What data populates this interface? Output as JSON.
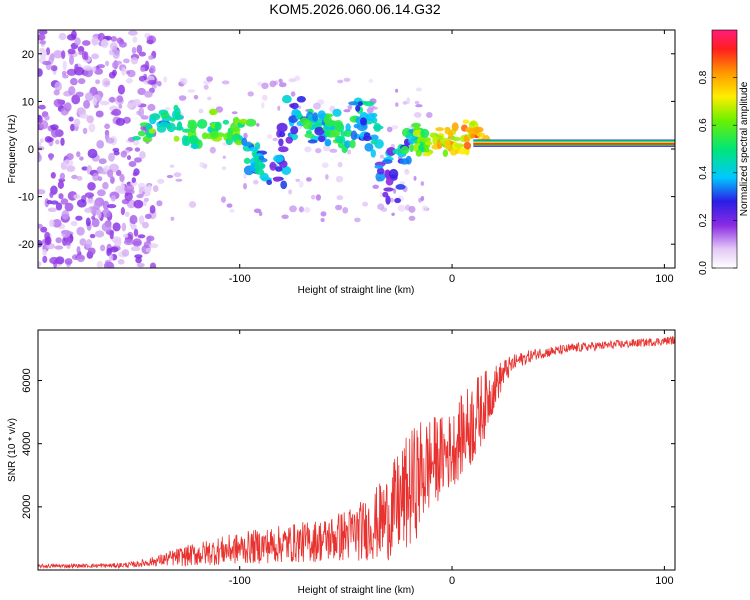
{
  "title": "KOM5.2026.060.06.14.G32",
  "chart_data": [
    {
      "type": "heatmap",
      "xlabel": "Height of straight line (km)",
      "ylabel": "Frequency (Hz)",
      "xlim": [
        -195,
        105
      ],
      "ylim": [
        -25,
        25
      ],
      "xticks": [
        -100,
        0,
        100
      ],
      "yticks": [
        -20,
        -10,
        0,
        10,
        20
      ],
      "colorbar": {
        "label": "Normalized spectral amplitude",
        "range": [
          0,
          1
        ],
        "ticks": [
          0.0,
          0.2,
          0.4,
          0.6,
          0.8
        ],
        "tick_labels": [
          "0.0",
          "0.2",
          "0.4",
          "0.6",
          "0.8"
        ]
      },
      "blobs": [
        {
          "x": -145,
          "f": 4,
          "a": 0.55
        },
        {
          "x": -138,
          "f": 5,
          "a": 0.45
        },
        {
          "x": -132,
          "f": 6,
          "a": 0.5
        },
        {
          "x": -128,
          "f": 4,
          "a": 0.55
        },
        {
          "x": -120,
          "f": 3,
          "a": 0.5
        },
        {
          "x": -115,
          "f": 5,
          "a": 0.5
        },
        {
          "x": -110,
          "f": 5,
          "a": 0.6
        },
        {
          "x": -104,
          "f": 4,
          "a": 0.55
        },
        {
          "x": -98,
          "f": 3,
          "a": 0.55
        },
        {
          "x": -95,
          "f": 0,
          "a": 0.4
        },
        {
          "x": -92,
          "f": -2,
          "a": 0.35
        },
        {
          "x": -88,
          "f": -4,
          "a": 0.35
        },
        {
          "x": -82,
          "f": -5,
          "a": 0.3
        },
        {
          "x": -78,
          "f": 2,
          "a": 0.3
        },
        {
          "x": -74,
          "f": 8,
          "a": 0.3
        },
        {
          "x": -70,
          "f": 6,
          "a": 0.4
        },
        {
          "x": -66,
          "f": 5,
          "a": 0.45
        },
        {
          "x": -62,
          "f": 4,
          "a": 0.35
        },
        {
          "x": -58,
          "f": 5,
          "a": 0.45
        },
        {
          "x": -55,
          "f": 4,
          "a": 0.5
        },
        {
          "x": -50,
          "f": 3,
          "a": 0.55
        },
        {
          "x": -46,
          "f": 4,
          "a": 0.45
        },
        {
          "x": -43,
          "f": 7,
          "a": 0.4
        },
        {
          "x": -40,
          "f": 5,
          "a": 0.35
        },
        {
          "x": -36,
          "f": 2,
          "a": 0.35
        },
        {
          "x": -32,
          "f": -3,
          "a": 0.3
        },
        {
          "x": -28,
          "f": -8,
          "a": 0.3
        },
        {
          "x": -24,
          "f": 0,
          "a": 0.35
        },
        {
          "x": -20,
          "f": 2,
          "a": 0.45
        },
        {
          "x": -16,
          "f": 3,
          "a": 0.55
        },
        {
          "x": -12,
          "f": 2,
          "a": 0.6
        },
        {
          "x": -8,
          "f": 1,
          "a": 0.65
        },
        {
          "x": -4,
          "f": 2,
          "a": 0.7
        },
        {
          "x": 0,
          "f": 1,
          "a": 0.75
        },
        {
          "x": 4,
          "f": 2,
          "a": 0.75
        },
        {
          "x": 8,
          "f": 3,
          "a": 0.7
        },
        {
          "x": 12,
          "f": 2,
          "a": 0.8
        }
      ],
      "band": {
        "x_start": 10,
        "x_end": 105,
        "f_low": 0.5,
        "f_high": 2
      }
    },
    {
      "type": "line",
      "xlabel": "Height of straight line (km)",
      "ylabel": "SNR (10 * v/v)",
      "xlim": [
        -195,
        105
      ],
      "ylim": [
        0,
        7600
      ],
      "xticks": [
        -100,
        0,
        100
      ],
      "yticks": [
        2000,
        4000,
        6000
      ],
      "series": [
        {
          "name": "SNR",
          "color": "#e8322f",
          "x": [
            -195,
            -180,
            -160,
            -150,
            -140,
            -130,
            -120,
            -110,
            -100,
            -90,
            -80,
            -70,
            -60,
            -50,
            -40,
            -30,
            -25,
            -20,
            -15,
            -10,
            -5,
            0,
            5,
            10,
            15,
            20,
            25,
            30,
            40,
            50,
            60,
            70,
            80,
            90,
            100,
            105
          ],
          "mean": [
            120,
            130,
            140,
            170,
            280,
            400,
            500,
            600,
            680,
            760,
            820,
            880,
            950,
            1100,
            1300,
            1700,
            2100,
            2500,
            3000,
            3400,
            3600,
            3800,
            4300,
            4700,
            5200,
            5800,
            6300,
            6600,
            6850,
            6950,
            7050,
            7100,
            7150,
            7200,
            7250,
            7280
          ],
          "spread": [
            60,
            60,
            70,
            90,
            160,
            280,
            380,
            450,
            500,
            560,
            600,
            650,
            700,
            850,
            1000,
            1400,
            1700,
            1900,
            1800,
            1500,
            1300,
            1200,
            1300,
            1400,
            1100,
            700,
            400,
            250,
            180,
            160,
            150,
            140,
            140,
            130,
            130,
            130
          ]
        }
      ]
    }
  ]
}
